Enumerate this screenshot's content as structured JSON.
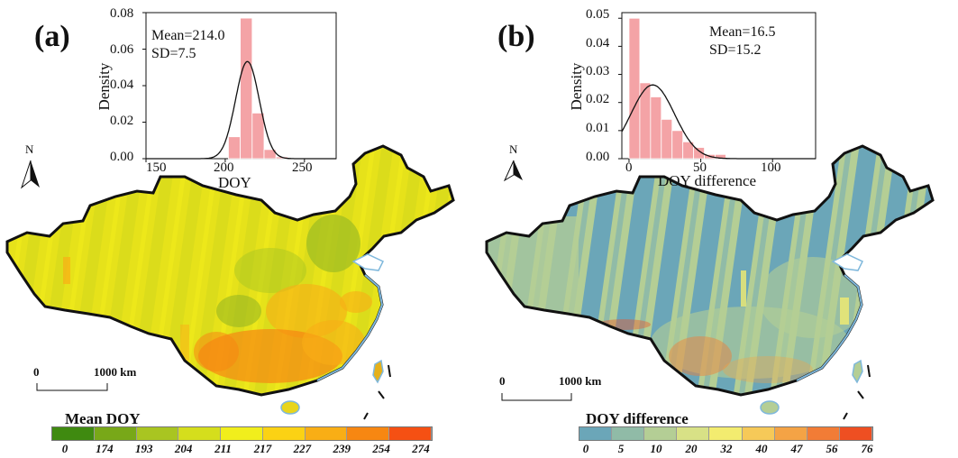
{
  "panels": [
    {
      "label": "(a)",
      "hist_text": [
        "Mean=214.0",
        "SD=7.5"
      ],
      "x_axis_title": "DOY",
      "y_axis_title": "Density",
      "x_ticks": [
        "150",
        "200",
        "250"
      ],
      "y_ticks": [
        "0.00",
        "0.02",
        "0.04",
        "0.06",
        "0.08"
      ],
      "legend_title": "Mean DOY",
      "legend_values": [
        "0",
        "174",
        "193",
        "204",
        "211",
        "217",
        "227",
        "239",
        "254",
        "274"
      ],
      "legend_colors": [
        "#3f8a10",
        "#78a818",
        "#a9c521",
        "#d5de1c",
        "#f1ee1c",
        "#fbd214",
        "#f9ae15",
        "#f78712",
        "#f55013"
      ],
      "scale_start": "0",
      "scale_end": "1000 km",
      "north": "N"
    },
    {
      "label": "(b)",
      "hist_text": [
        "Mean=16.5",
        "SD=15.2"
      ],
      "x_axis_title": "DOY difference",
      "y_axis_title": "Density",
      "x_ticks": [
        "0",
        "50",
        "100"
      ],
      "y_ticks": [
        "0.00",
        "0.01",
        "0.02",
        "0.03",
        "0.04",
        "0.05"
      ],
      "legend_title": "DOY difference",
      "legend_values": [
        "0",
        "5",
        "10",
        "20",
        "32",
        "40",
        "47",
        "56",
        "76"
      ],
      "legend_colors": [
        "#6ba6b8",
        "#90bba7",
        "#b4ce95",
        "#d8e186",
        "#f3ec6f",
        "#f6c958",
        "#f4a345",
        "#f27c36",
        "#ee4f22"
      ],
      "scale_start": "0",
      "scale_end": "1000 km",
      "north": "N"
    }
  ],
  "chart_data": [
    {
      "type": "histogram",
      "xlabel": "DOY",
      "ylabel": "Density",
      "xlim": [
        150,
        270
      ],
      "ylim": [
        0,
        0.08
      ],
      "bin_width": 7.5,
      "bins": [
        {
          "x0": 202,
          "density": 0.012
        },
        {
          "x0": 209.5,
          "density": 0.077
        },
        {
          "x0": 217,
          "density": 0.025
        },
        {
          "x0": 224.5,
          "density": 0.005
        },
        {
          "x0": 232,
          "density": 0.001
        }
      ],
      "curve": {
        "mean": 214.0,
        "sd": 7.5
      }
    },
    {
      "type": "histogram",
      "xlabel": "DOY difference",
      "ylabel": "Density",
      "xlim": [
        -5,
        130
      ],
      "ylim": [
        0,
        0.052
      ],
      "bin_width": 7.5,
      "bins": [
        {
          "x0": 0,
          "density": 0.05
        },
        {
          "x0": 7.5,
          "density": 0.027
        },
        {
          "x0": 15,
          "density": 0.022
        },
        {
          "x0": 22.5,
          "density": 0.014
        },
        {
          "x0": 30,
          "density": 0.01
        },
        {
          "x0": 37.5,
          "density": 0.006
        },
        {
          "x0": 45,
          "density": 0.004
        },
        {
          "x0": 52.5,
          "density": 0.0015
        },
        {
          "x0": 60,
          "density": 0.0015
        }
      ],
      "curve": {
        "mean": 16.5,
        "sd": 15.2
      }
    }
  ]
}
